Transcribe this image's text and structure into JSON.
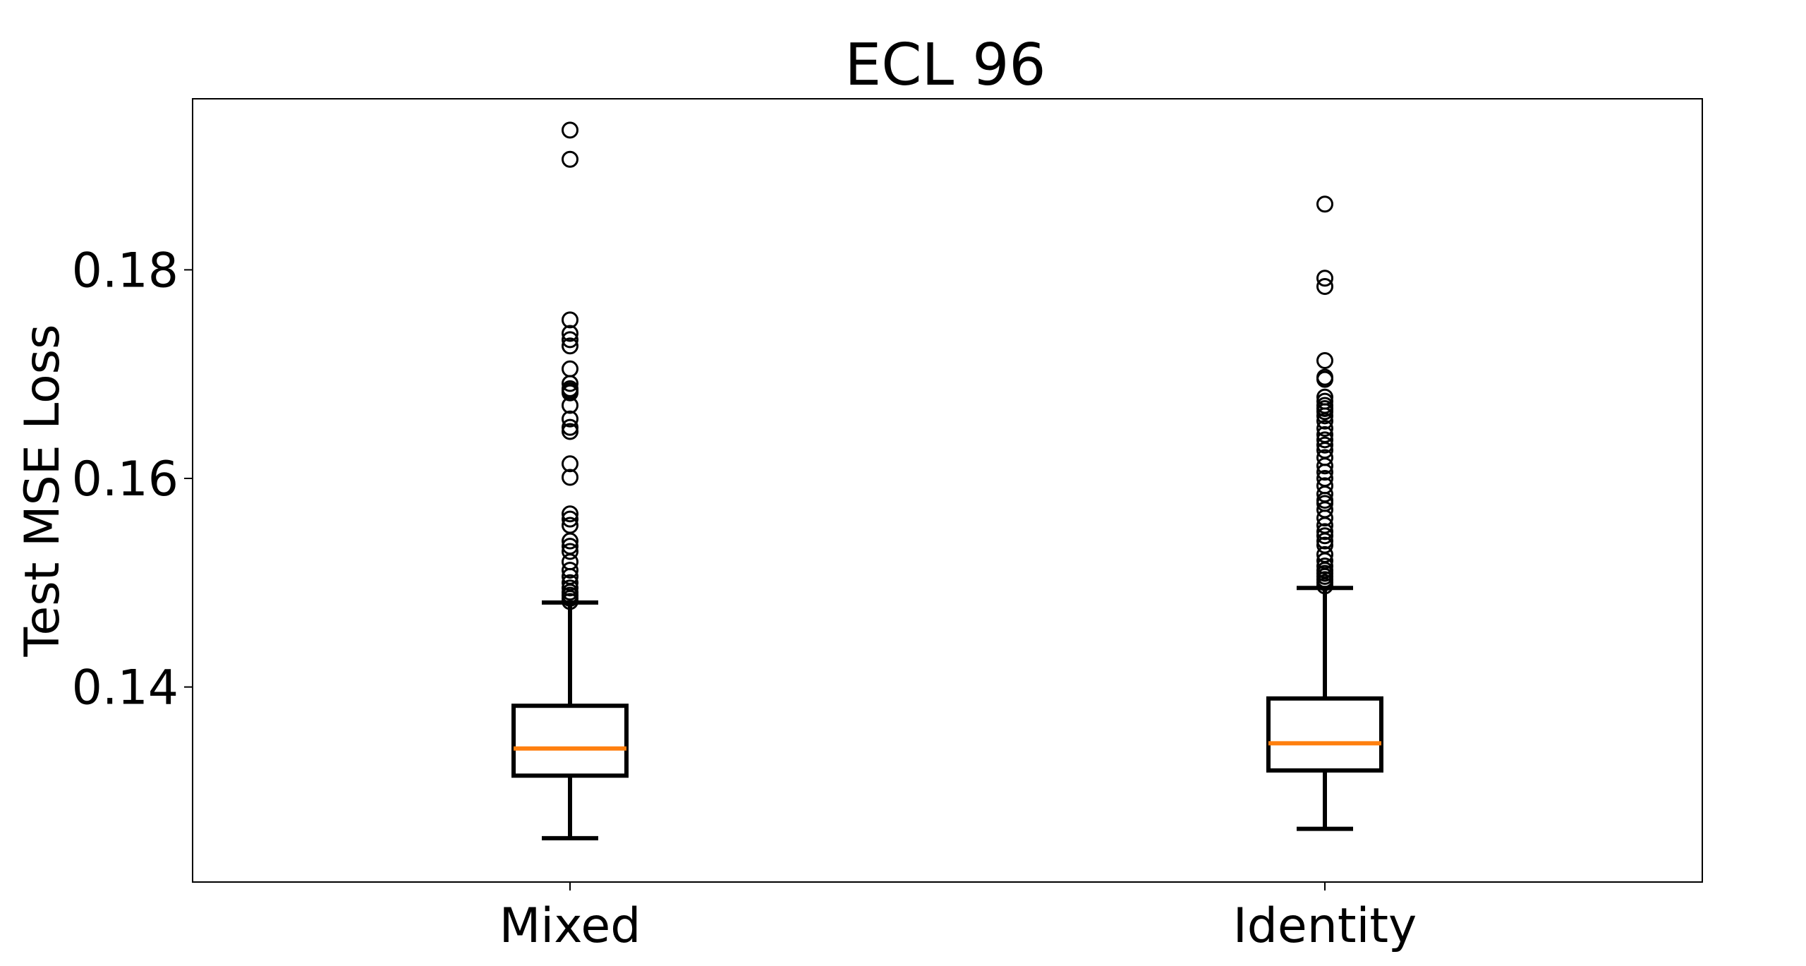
{
  "chart_data": {
    "type": "box",
    "title": "ECL 96",
    "ylabel": "Test MSE Loss",
    "xlabel": "",
    "ylim": [
      0.1213,
      0.1964
    ],
    "yticks": [
      "0.14",
      "0.16",
      "0.18"
    ],
    "ytick_values": [
      0.14,
      0.16,
      0.18
    ],
    "categories": [
      "Mixed",
      "Identity"
    ],
    "grid": false,
    "legend": "none",
    "colors": {
      "box": "#000000",
      "median": "#ff7f0e",
      "flier_face": "#ffffff",
      "flier_edge": "#000000"
    },
    "series": [
      {
        "category": "Mixed",
        "whisker_low": 0.1255,
        "q1": 0.1315,
        "median": 0.1341,
        "q3": 0.1382,
        "whisker_high": 0.1481,
        "outliers": [
          0.1934,
          0.1906,
          0.1752,
          0.1739,
          0.1733,
          0.1727,
          0.1705,
          0.1691,
          0.1686,
          0.1684,
          0.1682,
          0.167,
          0.1657,
          0.1649,
          0.1645,
          0.1614,
          0.1601,
          0.1566,
          0.1561,
          0.1555,
          0.154,
          0.1535,
          0.153,
          0.152,
          0.1512,
          0.1506,
          0.15,
          0.1495,
          0.1491,
          0.1488,
          0.1485,
          0.1482
        ]
      },
      {
        "category": "Identity",
        "whisker_low": 0.1264,
        "q1": 0.132,
        "median": 0.1346,
        "q3": 0.1389,
        "whisker_high": 0.1495,
        "outliers": [
          0.1863,
          0.1792,
          0.1784,
          0.1713,
          0.1697,
          0.1695,
          0.1678,
          0.1674,
          0.167,
          0.1667,
          0.1664,
          0.166,
          0.1655,
          0.1648,
          0.1642,
          0.1637,
          0.1632,
          0.1627,
          0.162,
          0.1612,
          0.1606,
          0.16,
          0.1593,
          0.1585,
          0.1579,
          0.1576,
          0.157,
          0.1562,
          0.1555,
          0.1549,
          0.1545,
          0.154,
          0.1536,
          0.1527,
          0.1521,
          0.1516,
          0.1512,
          0.1509,
          0.1506,
          0.1503,
          0.15,
          0.1497
        ]
      }
    ]
  }
}
